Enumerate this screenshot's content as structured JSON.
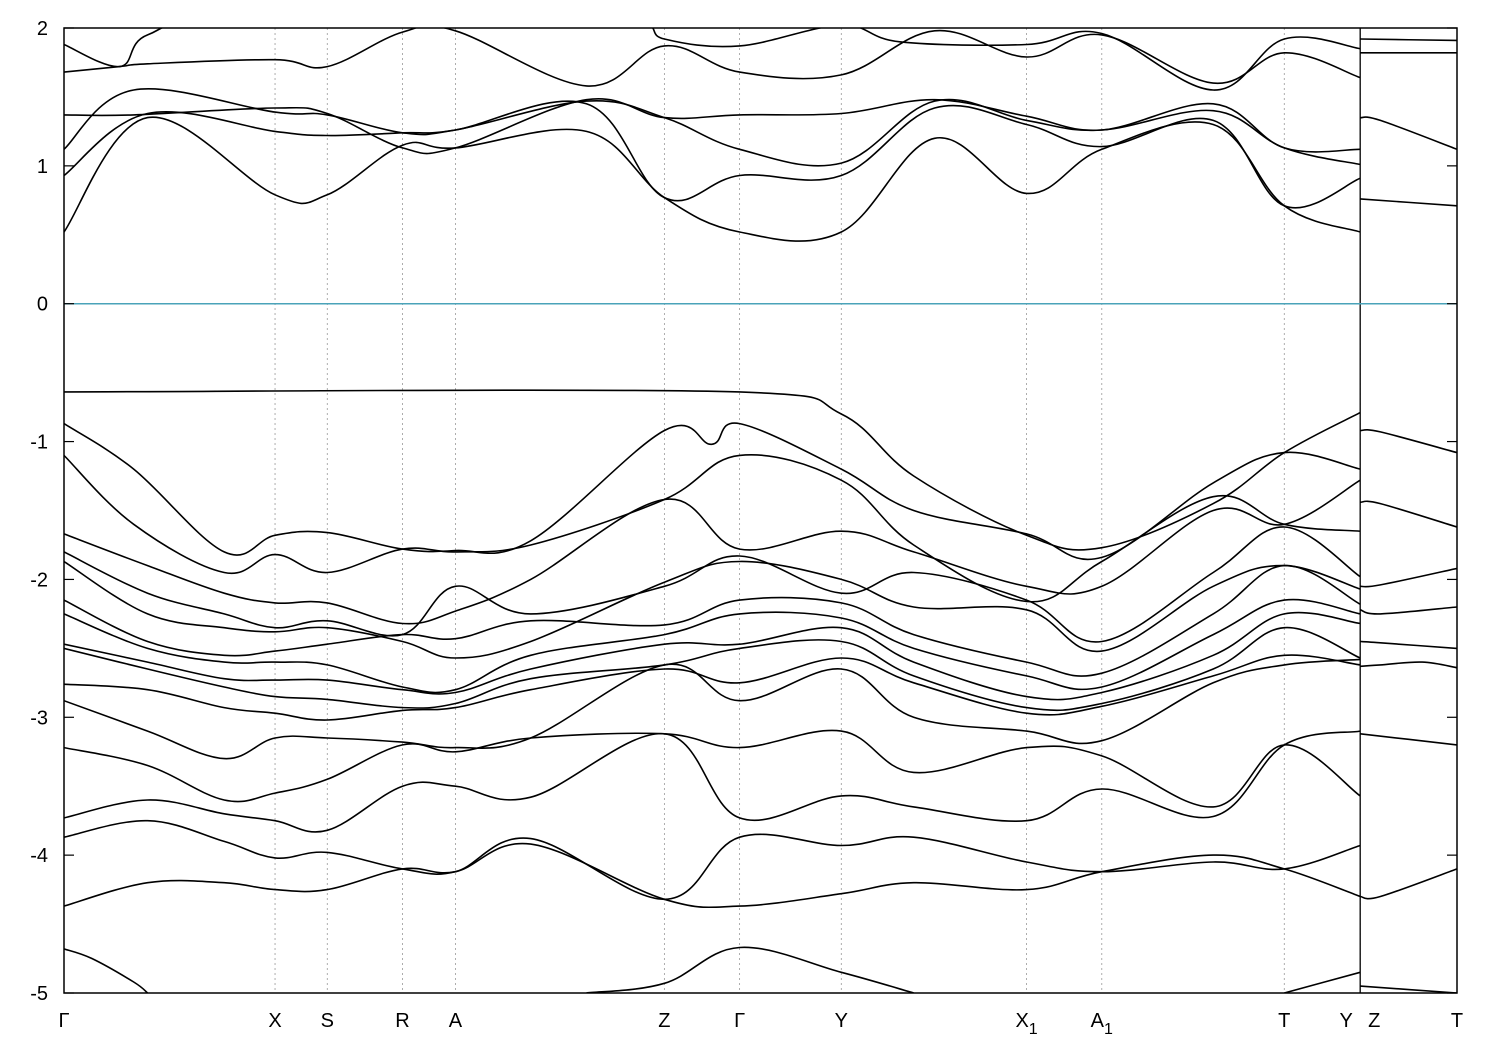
{
  "chart_data": {
    "type": "line",
    "title": "",
    "xlabel": "",
    "ylabel": "",
    "ylim": [
      -5,
      2
    ],
    "yticks": [
      2,
      1,
      0,
      -1,
      -2,
      -3,
      -4,
      -5
    ],
    "grid": "dashed vertical lines at high-symmetry points",
    "legend": "none",
    "fermi_level": 0,
    "colors": {
      "bands": "#000000",
      "fermi": "#4aa3b9",
      "grid": "#999999"
    },
    "kpoints": [
      {
        "label": "Γ",
        "sub": "",
        "x": 0.0
      },
      {
        "label": "X",
        "sub": "",
        "x": 3.03
      },
      {
        "label": "S",
        "sub": "",
        "x": 3.78
      },
      {
        "label": "R",
        "sub": "",
        "x": 4.86
      },
      {
        "label": "A",
        "sub": "",
        "x": 5.62
      },
      {
        "label": "Z",
        "sub": "",
        "x": 8.62
      },
      {
        "label": "Γ",
        "sub": "",
        "x": 9.7
      },
      {
        "label": "Y",
        "sub": "",
        "x": 11.16
      },
      {
        "label": "X",
        "sub": "1",
        "x": 13.82
      },
      {
        "label": "A",
        "sub": "1",
        "x": 14.9
      },
      {
        "label": "T",
        "sub": "",
        "x": 17.52
      },
      {
        "label": "Y",
        "sub": "",
        "x": 18.61
      },
      {
        "label": "Z",
        "sub": "",
        "x": 18.61
      },
      {
        "label": "T",
        "sub": "",
        "x": 20.0
      }
    ],
    "segments": [
      {
        "name": "main",
        "x": [
          0.0,
          18.61
        ]
      },
      {
        "name": "tail",
        "x": [
          18.61,
          20.0
        ]
      }
    ],
    "series": [
      {
        "segment": "main",
        "x": [
          0,
          1.2,
          3.03,
          3.78,
          4.86,
          5.62,
          7.5,
          8.62,
          9.7,
          11.16,
          12.5,
          13.82,
          14.9,
          16.5,
          17.52,
          18.61
        ],
        "values": [
          0.52,
          1.35,
          0.79,
          0.79,
          1.15,
          1.13,
          1.25,
          0.77,
          0.52,
          0.52,
          1.2,
          0.8,
          1.12,
          1.3,
          0.71,
          0.52
        ]
      },
      {
        "segment": "main",
        "x": [
          0,
          1.2,
          3.03,
          3.78,
          4.86,
          5.62,
          7.5,
          8.62,
          9.7,
          11.16,
          12.5,
          13.82,
          14.9,
          16.5,
          17.52,
          18.61
        ],
        "values": [
          0.93,
          1.38,
          1.25,
          1.22,
          1.24,
          1.26,
          1.45,
          0.77,
          0.93,
          0.93,
          1.42,
          1.3,
          1.14,
          1.33,
          0.71,
          0.91
        ]
      },
      {
        "segment": "main",
        "x": [
          0,
          1.0,
          3.03,
          3.78,
          4.86,
          5.62,
          7.5,
          8.62,
          9.7,
          11.16,
          12.5,
          13.82,
          14.9,
          16.5,
          17.52,
          18.61
        ],
        "values": [
          1.12,
          1.55,
          1.39,
          1.37,
          1.24,
          1.26,
          1.47,
          1.35,
          1.12,
          1.02,
          1.47,
          1.33,
          1.26,
          1.4,
          1.13,
          1.01
        ]
      },
      {
        "segment": "main",
        "x": [
          0,
          1.0,
          3.03,
          3.78,
          4.86,
          5.62,
          7.5,
          8.62,
          9.7,
          11.16,
          12.5,
          13.82,
          14.9,
          16.5,
          17.52,
          18.61
        ],
        "values": [
          1.37,
          1.37,
          1.42,
          1.38,
          1.13,
          1.13,
          1.48,
          1.35,
          1.37,
          1.38,
          1.48,
          1.36,
          1.26,
          1.45,
          1.13,
          1.12
        ]
      },
      {
        "segment": "main",
        "x": [
          0,
          0.8,
          1.2,
          3.03,
          3.78,
          4.86,
          5.62,
          7.5,
          8.62,
          9.7,
          11.16,
          12.5,
          13.82,
          14.9,
          16.5,
          17.52,
          18.61
        ],
        "values": [
          1.68,
          1.72,
          1.74,
          1.77,
          1.72,
          1.97,
          1.98,
          1.58,
          1.87,
          1.68,
          1.66,
          1.98,
          1.79,
          1.95,
          1.6,
          1.82,
          1.64
        ]
      },
      {
        "segment": "main",
        "x": [
          0,
          0.8,
          1.2,
          2.5,
          8.2,
          8.62,
          9.7,
          11.16,
          12.0,
          13.82,
          14.9,
          16.5,
          17.52,
          18.61
        ],
        "values": [
          1.88,
          1.72,
          1.95,
          2.05,
          2.05,
          1.92,
          1.87,
          2.02,
          1.9,
          1.88,
          1.96,
          1.55,
          1.92,
          1.85
        ]
      },
      {
        "segment": "main",
        "x": [
          0,
          9.7,
          11.16,
          12.2,
          13.82,
          14.9,
          16.5,
          17.52,
          18.61
        ],
        "values": [
          -0.64,
          -0.64,
          -0.8,
          -1.25,
          -1.68,
          -1.77,
          -1.45,
          -1.08,
          -0.79
        ]
      },
      {
        "segment": "main",
        "x": [
          0,
          1.0,
          2.3,
          3.03,
          3.78,
          4.86,
          5.62,
          6.7,
          8.62,
          9.3,
          9.7,
          11.16,
          12.2,
          13.82,
          14.9,
          16.5,
          17.52,
          18.61
        ],
        "values": [
          -0.87,
          -1.2,
          -1.8,
          -1.68,
          -1.66,
          -1.78,
          -1.79,
          -1.72,
          -0.92,
          -1.02,
          -0.87,
          -1.2,
          -1.5,
          -1.67,
          -1.84,
          -1.3,
          -1.08,
          -1.2
        ]
      },
      {
        "segment": "main",
        "x": [
          0,
          1.0,
          2.3,
          3.03,
          3.78,
          4.86,
          5.62,
          6.7,
          8.62,
          9.7,
          11.16,
          12.2,
          13.82,
          14.9,
          16.5,
          17.52,
          18.61
        ],
        "values": [
          -1.1,
          -1.6,
          -1.95,
          -1.82,
          -1.95,
          -1.78,
          -1.8,
          -1.75,
          -1.42,
          -1.1,
          -1.28,
          -1.75,
          -2.16,
          -1.87,
          -1.4,
          -1.6,
          -1.65
        ]
      },
      {
        "segment": "main",
        "x": [
          0,
          1.2,
          2.3,
          3.03,
          3.78,
          4.86,
          5.62,
          6.7,
          8.62,
          9.7,
          11.16,
          12.2,
          13.82,
          14.9,
          16.5,
          17.52,
          18.61
        ],
        "values": [
          -1.67,
          -1.9,
          -2.1,
          -2.17,
          -2.17,
          -2.32,
          -2.23,
          -2.0,
          -1.42,
          -1.78,
          -1.65,
          -1.8,
          -2.05,
          -2.05,
          -1.5,
          -1.6,
          -1.28
        ]
      },
      {
        "segment": "main",
        "x": [
          0,
          1.2,
          2.3,
          3.03,
          3.78,
          4.86,
          5.62,
          6.7,
          8.62,
          9.7,
          11.16,
          12.2,
          13.82,
          14.9,
          16.5,
          17.52,
          18.61
        ],
        "values": [
          -1.8,
          -2.1,
          -2.25,
          -2.35,
          -2.3,
          -2.4,
          -2.05,
          -2.25,
          -2.05,
          -1.83,
          -2.1,
          -1.95,
          -2.15,
          -2.45,
          -1.95,
          -1.62,
          -1.98
        ]
      },
      {
        "segment": "main",
        "x": [
          0,
          1.2,
          2.3,
          3.03,
          3.78,
          4.86,
          5.62,
          6.7,
          8.62,
          9.7,
          11.16,
          12.2,
          13.82,
          14.9,
          16.5,
          17.52,
          18.61
        ],
        "values": [
          -1.87,
          -2.25,
          -2.35,
          -2.38,
          -2.35,
          -2.45,
          -2.57,
          -2.45,
          -2.02,
          -1.87,
          -2.0,
          -2.2,
          -2.22,
          -2.52,
          -2.05,
          -1.9,
          -2.07
        ]
      },
      {
        "segment": "main",
        "x": [
          0,
          1.2,
          2.3,
          3.03,
          3.78,
          4.86,
          5.62,
          6.7,
          8.62,
          9.7,
          11.16,
          12.2,
          13.82,
          14.9,
          16.5,
          17.52,
          18.61
        ],
        "values": [
          -2.15,
          -2.45,
          -2.55,
          -2.52,
          -2.47,
          -2.4,
          -2.43,
          -2.3,
          -2.33,
          -2.15,
          -2.17,
          -2.4,
          -2.6,
          -2.68,
          -2.25,
          -1.9,
          -2.18
        ]
      },
      {
        "segment": "main",
        "x": [
          0,
          1.2,
          2.3,
          3.03,
          3.78,
          4.86,
          5.62,
          6.7,
          8.62,
          9.7,
          11.16,
          12.2,
          13.82,
          14.9,
          16.5,
          17.52,
          18.61
        ],
        "values": [
          -2.25,
          -2.5,
          -2.6,
          -2.6,
          -2.62,
          -2.78,
          -2.8,
          -2.55,
          -2.4,
          -2.25,
          -2.28,
          -2.5,
          -2.7,
          -2.78,
          -2.4,
          -2.15,
          -2.25
        ]
      },
      {
        "segment": "main",
        "x": [
          0,
          1.2,
          2.3,
          3.03,
          3.78,
          4.86,
          5.62,
          6.7,
          8.62,
          9.7,
          11.16,
          12.2,
          13.82,
          14.9,
          16.5,
          17.52,
          18.61
        ],
        "values": [
          -2.47,
          -2.6,
          -2.72,
          -2.73,
          -2.73,
          -2.8,
          -2.82,
          -2.65,
          -2.47,
          -2.47,
          -2.35,
          -2.6,
          -2.85,
          -2.82,
          -2.55,
          -2.25,
          -2.32
        ]
      },
      {
        "segment": "main",
        "x": [
          0,
          1.2,
          2.3,
          3.03,
          3.78,
          4.86,
          5.62,
          6.7,
          8.62,
          9.7,
          11.16,
          12.2,
          13.82,
          14.9,
          16.5,
          17.52,
          18.61
        ],
        "values": [
          -2.5,
          -2.65,
          -2.78,
          -2.85,
          -2.87,
          -2.93,
          -2.9,
          -2.72,
          -2.62,
          -2.5,
          -2.45,
          -2.7,
          -2.93,
          -2.9,
          -2.65,
          -2.35,
          -2.57
        ]
      },
      {
        "segment": "main",
        "x": [
          0,
          1.2,
          2.3,
          3.03,
          3.78,
          4.86,
          5.62,
          6.7,
          8.62,
          9.7,
          11.16,
          12.2,
          13.82,
          14.9,
          16.5,
          17.52,
          18.61
        ],
        "values": [
          -2.76,
          -2.8,
          -2.93,
          -2.97,
          -3.02,
          -2.95,
          -2.93,
          -2.8,
          -2.65,
          -2.75,
          -2.57,
          -2.75,
          -2.97,
          -2.92,
          -2.7,
          -2.55,
          -2.62
        ]
      },
      {
        "segment": "main",
        "x": [
          0,
          1.2,
          2.3,
          3.03,
          3.78,
          4.86,
          5.62,
          6.7,
          8.62,
          9.7,
          11.16,
          12.2,
          13.82,
          14.9,
          16.5,
          17.52,
          18.61
        ],
        "values": [
          -2.88,
          -3.1,
          -3.3,
          -3.15,
          -3.15,
          -3.18,
          -3.22,
          -3.15,
          -2.62,
          -2.88,
          -2.65,
          -3.0,
          -3.1,
          -3.17,
          -2.75,
          -2.62,
          -2.58
        ]
      },
      {
        "segment": "main",
        "x": [
          0,
          1.2,
          2.3,
          3.03,
          3.78,
          4.86,
          5.62,
          6.7,
          8.62,
          9.7,
          11.16,
          12.2,
          13.82,
          14.9,
          16.5,
          17.52,
          18.61
        ],
        "values": [
          -3.22,
          -3.35,
          -3.6,
          -3.55,
          -3.45,
          -3.2,
          -3.25,
          -3.15,
          -3.12,
          -3.22,
          -3.1,
          -3.4,
          -3.22,
          -3.28,
          -3.65,
          -3.2,
          -3.57
        ]
      },
      {
        "segment": "main",
        "x": [
          0,
          1.2,
          2.3,
          3.03,
          3.78,
          4.86,
          5.62,
          6.7,
          8.62,
          9.7,
          11.16,
          12.2,
          13.82,
          14.9,
          16.5,
          17.52,
          18.61
        ],
        "values": [
          -3.73,
          -3.6,
          -3.7,
          -3.75,
          -3.82,
          -3.5,
          -3.5,
          -3.58,
          -3.12,
          -3.73,
          -3.57,
          -3.65,
          -3.75,
          -3.52,
          -3.72,
          -3.2,
          -3.1
        ]
      },
      {
        "segment": "main",
        "x": [
          0,
          1.2,
          2.3,
          3.03,
          3.78,
          4.86,
          5.62,
          6.7,
          8.62,
          9.7,
          11.16,
          12.2,
          13.82,
          14.9,
          16.5,
          17.52,
          18.61
        ],
        "values": [
          -3.87,
          -3.75,
          -3.9,
          -4.02,
          -3.98,
          -4.1,
          -4.12,
          -3.88,
          -4.32,
          -3.87,
          -3.93,
          -3.87,
          -4.05,
          -4.12,
          -4.05,
          -4.1,
          -3.93
        ]
      },
      {
        "segment": "main",
        "x": [
          0,
          1.2,
          2.3,
          3.03,
          3.78,
          4.86,
          5.62,
          6.7,
          8.62,
          9.7,
          11.16,
          12.2,
          13.82,
          14.9,
          16.5,
          17.52,
          18.61
        ],
        "values": [
          -4.37,
          -4.2,
          -4.2,
          -4.25,
          -4.25,
          -4.1,
          -4.12,
          -3.92,
          -4.32,
          -4.37,
          -4.28,
          -4.2,
          -4.25,
          -4.12,
          -4.0,
          -4.1,
          -4.3
        ]
      },
      {
        "segment": "main",
        "x": [
          0,
          0.4,
          1.0,
          1.2
        ],
        "values": [
          -4.68,
          -4.75,
          -4.92,
          -5.0
        ]
      },
      {
        "segment": "main",
        "x": [
          7.5,
          8.62,
          9.7,
          11.16,
          12.2
        ],
        "values": [
          -5.0,
          -4.93,
          -4.67,
          -4.85,
          -5.0
        ]
      },
      {
        "segment": "main",
        "x": [
          17.52,
          18.61
        ],
        "values": [
          -5.0,
          -4.85
        ]
      },
      {
        "segment": "tail",
        "x": [
          18.61,
          20.0
        ],
        "values": [
          1.92,
          1.91
        ]
      },
      {
        "segment": "tail",
        "x": [
          18.61,
          20.0
        ],
        "values": [
          1.82,
          1.82
        ]
      },
      {
        "segment": "tail",
        "x": [
          18.61,
          18.9,
          20.0
        ],
        "values": [
          1.35,
          1.33,
          1.12
        ]
      },
      {
        "segment": "tail",
        "x": [
          18.61,
          20.0
        ],
        "values": [
          0.76,
          0.71
        ]
      },
      {
        "segment": "tail",
        "x": [
          18.61,
          18.9,
          20.0
        ],
        "values": [
          -0.92,
          -0.93,
          -1.08
        ]
      },
      {
        "segment": "tail",
        "x": [
          18.61,
          18.9,
          20.0
        ],
        "values": [
          -1.44,
          -1.45,
          -1.62
        ]
      },
      {
        "segment": "tail",
        "x": [
          18.61,
          18.9,
          20.0
        ],
        "values": [
          -2.05,
          -2.04,
          -1.92
        ]
      },
      {
        "segment": "tail",
        "x": [
          18.61,
          18.9,
          20.0
        ],
        "values": [
          -2.22,
          -2.25,
          -2.2
        ]
      },
      {
        "segment": "tail",
        "x": [
          18.61,
          18.9,
          20.0
        ],
        "values": [
          -2.45,
          -2.46,
          -2.5
        ]
      },
      {
        "segment": "tail",
        "x": [
          18.61,
          18.9,
          19.5,
          20.0
        ],
        "values": [
          -2.63,
          -2.62,
          -2.6,
          -2.64
        ]
      },
      {
        "segment": "tail",
        "x": [
          18.61,
          20.0
        ],
        "values": [
          -3.12,
          -3.2
        ]
      },
      {
        "segment": "tail",
        "x": [
          18.61,
          18.9,
          20.0
        ],
        "values": [
          -4.3,
          -4.3,
          -4.1
        ]
      },
      {
        "segment": "tail",
        "x": [
          18.61,
          20.0
        ],
        "values": [
          -4.95,
          -5.0
        ]
      }
    ]
  }
}
